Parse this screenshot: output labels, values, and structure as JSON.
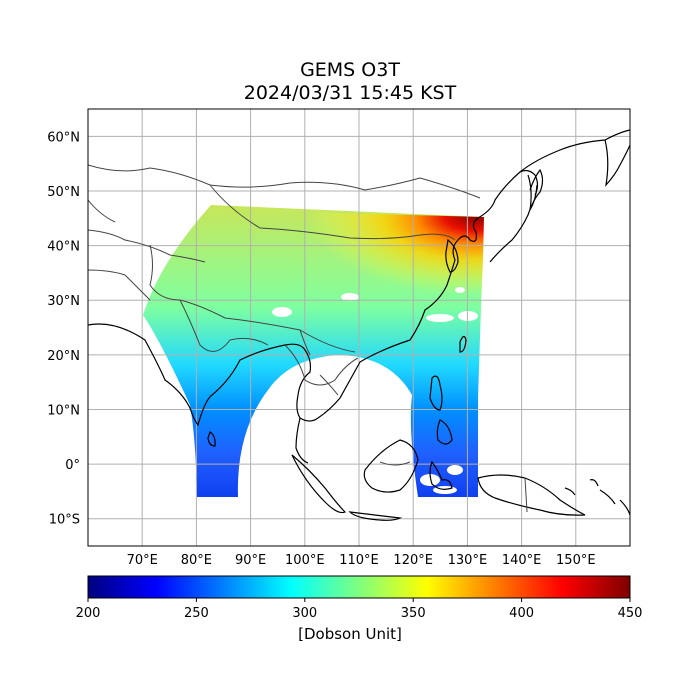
{
  "title": "GEMS O3T",
  "subtitle": "2024/03/31 15:45 KST",
  "map": {
    "lon_range": [
      60,
      160
    ],
    "lat_range": [
      -15,
      65
    ],
    "grid": true,
    "lon_ticks": [
      {
        "value": 70,
        "label": "70°E"
      },
      {
        "value": 80,
        "label": "80°E"
      },
      {
        "value": 90,
        "label": "90°E"
      },
      {
        "value": 100,
        "label": "100°E"
      },
      {
        "value": 110,
        "label": "110°E"
      },
      {
        "value": 120,
        "label": "120°E"
      },
      {
        "value": 130,
        "label": "130°E"
      },
      {
        "value": 140,
        "label": "140°E"
      },
      {
        "value": 150,
        "label": "150°E"
      }
    ],
    "lat_ticks": [
      {
        "value": 60,
        "label": "60°N"
      },
      {
        "value": 50,
        "label": "50°N"
      },
      {
        "value": 40,
        "label": "40°N"
      },
      {
        "value": 30,
        "label": "30°N"
      },
      {
        "value": 20,
        "label": "20°N"
      },
      {
        "value": 10,
        "label": "10°N"
      },
      {
        "value": 0,
        "label": "0°"
      },
      {
        "value": -10,
        "label": "10°S"
      }
    ]
  },
  "colorbar": {
    "colormap": "jet",
    "min": 200,
    "max": 450,
    "ticks": [
      {
        "value": 200,
        "label": "200"
      },
      {
        "value": 250,
        "label": "250"
      },
      {
        "value": 300,
        "label": "300"
      },
      {
        "value": 350,
        "label": "350"
      },
      {
        "value": 400,
        "label": "400"
      },
      {
        "value": 450,
        "label": "450"
      }
    ],
    "unit": "[Dobson Unit]"
  },
  "colors": {
    "jet_stops": [
      "#00007f",
      "#0000ff",
      "#007fff",
      "#00ffff",
      "#7fff7f",
      "#ffff00",
      "#ff7f00",
      "#ff0000",
      "#7f0000"
    ],
    "grid": "#b0b0b0",
    "coastline": "#000000",
    "border": "#444444"
  }
}
